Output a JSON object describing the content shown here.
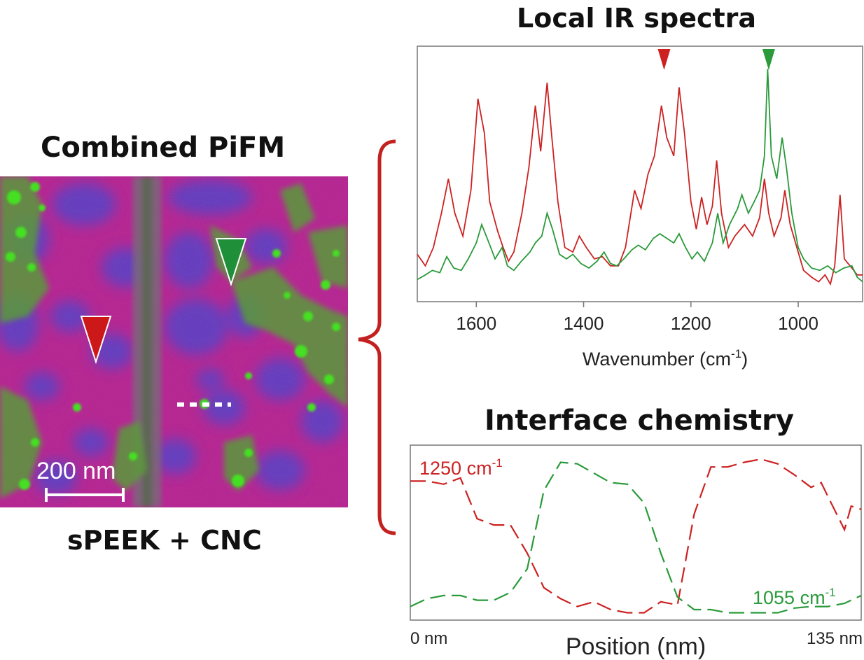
{
  "headings": {
    "combined": "Combined PiFM",
    "sample": "sPEEK + CNC",
    "spectra_title": "Local IR spectra",
    "profile_title": "Interface chemistry"
  },
  "image": {
    "scale_bar_label": "200 nm",
    "scale_bar_value_nm": 200
  },
  "colors": {
    "red": "#cc2222",
    "green": "#2a9a3a",
    "magenta": "#c0208a",
    "blue": "#4a3fc8",
    "particle_green": "#44e020"
  },
  "chart_data": [
    {
      "type": "line",
      "title": "Local IR spectra",
      "xlabel_main": "Wavenumber (cm",
      "xlabel_sup": "-1",
      "xlabel_end": ")",
      "xlim": [
        1710,
        880
      ],
      "reversed_x": true,
      "x_ticks": [
        1600,
        1400,
        1200,
        1000
      ],
      "y_ticks_shown": false,
      "ylim": [
        0,
        1
      ],
      "markers": [
        {
          "x": 1250,
          "color": "#cc2222"
        },
        {
          "x": 1055,
          "color": "#2a9a3a"
        }
      ],
      "series": [
        {
          "color": "#cc2222",
          "points": [
            [
              1710,
              0.17
            ],
            [
              1695,
              0.12
            ],
            [
              1680,
              0.2
            ],
            [
              1665,
              0.35
            ],
            [
              1652,
              0.5
            ],
            [
              1640,
              0.35
            ],
            [
              1625,
              0.25
            ],
            [
              1610,
              0.45
            ],
            [
              1597,
              0.85
            ],
            [
              1585,
              0.7
            ],
            [
              1575,
              0.4
            ],
            [
              1560,
              0.27
            ],
            [
              1550,
              0.2
            ],
            [
              1540,
              0.14
            ],
            [
              1530,
              0.18
            ],
            [
              1515,
              0.35
            ],
            [
              1502,
              0.55
            ],
            [
              1490,
              0.82
            ],
            [
              1480,
              0.62
            ],
            [
              1468,
              0.92
            ],
            [
              1460,
              0.7
            ],
            [
              1448,
              0.4
            ],
            [
              1435,
              0.2
            ],
            [
              1420,
              0.18
            ],
            [
              1408,
              0.25
            ],
            [
              1395,
              0.2
            ],
            [
              1380,
              0.15
            ],
            [
              1365,
              0.16
            ],
            [
              1350,
              0.12
            ],
            [
              1335,
              0.12
            ],
            [
              1322,
              0.2
            ],
            [
              1305,
              0.45
            ],
            [
              1293,
              0.37
            ],
            [
              1280,
              0.52
            ],
            [
              1268,
              0.6
            ],
            [
              1255,
              0.82
            ],
            [
              1245,
              0.68
            ],
            [
              1232,
              0.6
            ],
            [
              1222,
              0.9
            ],
            [
              1212,
              0.7
            ],
            [
              1200,
              0.4
            ],
            [
              1190,
              0.28
            ],
            [
              1180,
              0.42
            ],
            [
              1170,
              0.3
            ],
            [
              1160,
              0.38
            ],
            [
              1152,
              0.58
            ],
            [
              1143,
              0.35
            ],
            [
              1130,
              0.2
            ],
            [
              1118,
              0.25
            ],
            [
              1100,
              0.3
            ],
            [
              1085,
              0.25
            ],
            [
              1072,
              0.33
            ],
            [
              1063,
              0.5
            ],
            [
              1055,
              0.35
            ],
            [
              1045,
              0.25
            ],
            [
              1032,
              0.33
            ],
            [
              1025,
              0.45
            ],
            [
              1015,
              0.3
            ],
            [
              1000,
              0.18
            ],
            [
              990,
              0.1
            ],
            [
              975,
              0.07
            ],
            [
              962,
              0.05
            ],
            [
              950,
              0.08
            ],
            [
              940,
              0.04
            ],
            [
              932,
              0.12
            ],
            [
              922,
              0.43
            ],
            [
              914,
              0.15
            ],
            [
              900,
              0.11
            ],
            [
              890,
              0.08
            ],
            [
              880,
              0.08
            ]
          ]
        },
        {
          "color": "#2a9a3a",
          "points": [
            [
              1710,
              0.06
            ],
            [
              1695,
              0.08
            ],
            [
              1682,
              0.1
            ],
            [
              1668,
              0.09
            ],
            [
              1655,
              0.16
            ],
            [
              1642,
              0.11
            ],
            [
              1628,
              0.1
            ],
            [
              1615,
              0.15
            ],
            [
              1600,
              0.22
            ],
            [
              1590,
              0.3
            ],
            [
              1578,
              0.23
            ],
            [
              1565,
              0.15
            ],
            [
              1552,
              0.2
            ],
            [
              1542,
              0.12
            ],
            [
              1530,
              0.1
            ],
            [
              1516,
              0.14
            ],
            [
              1500,
              0.18
            ],
            [
              1490,
              0.22
            ],
            [
              1478,
              0.25
            ],
            [
              1468,
              0.35
            ],
            [
              1458,
              0.28
            ],
            [
              1445,
              0.17
            ],
            [
              1432,
              0.15
            ],
            [
              1420,
              0.17
            ],
            [
              1405,
              0.13
            ],
            [
              1390,
              0.11
            ],
            [
              1375,
              0.14
            ],
            [
              1362,
              0.18
            ],
            [
              1350,
              0.13
            ],
            [
              1338,
              0.12
            ],
            [
              1325,
              0.15
            ],
            [
              1310,
              0.19
            ],
            [
              1298,
              0.21
            ],
            [
              1285,
              0.19
            ],
            [
              1270,
              0.24
            ],
            [
              1258,
              0.26
            ],
            [
              1245,
              0.24
            ],
            [
              1232,
              0.22
            ],
            [
              1222,
              0.26
            ],
            [
              1210,
              0.2
            ],
            [
              1198,
              0.15
            ],
            [
              1188,
              0.18
            ],
            [
              1175,
              0.14
            ],
            [
              1160,
              0.22
            ],
            [
              1150,
              0.35
            ],
            [
              1140,
              0.22
            ],
            [
              1128,
              0.3
            ],
            [
              1113,
              0.37
            ],
            [
              1105,
              0.43
            ],
            [
              1093,
              0.35
            ],
            [
              1082,
              0.4
            ],
            [
              1072,
              0.45
            ],
            [
              1063,
              0.6
            ],
            [
              1057,
              0.98
            ],
            [
              1050,
              0.6
            ],
            [
              1040,
              0.5
            ],
            [
              1030,
              0.68
            ],
            [
              1022,
              0.55
            ],
            [
              1012,
              0.35
            ],
            [
              1000,
              0.2
            ],
            [
              990,
              0.15
            ],
            [
              975,
              0.11
            ],
            [
              960,
              0.1
            ],
            [
              945,
              0.12
            ],
            [
              930,
              0.09
            ],
            [
              915,
              0.11
            ],
            [
              900,
              0.12
            ],
            [
              890,
              0.07
            ],
            [
              880,
              0.05
            ]
          ]
        }
      ]
    },
    {
      "type": "line",
      "title": "Interface chemistry",
      "xlabel": "Position (nm)",
      "x_tick_labels": [
        "0 nm",
        "135 nm"
      ],
      "xlim": [
        0,
        135
      ],
      "ylim": [
        0,
        1
      ],
      "series": [
        {
          "name_main": "1250 cm",
          "name_sup": "-1",
          "color": "#cc2222",
          "dash": true,
          "points": [
            [
              0,
              0.86
            ],
            [
              5,
              0.86
            ],
            [
              10,
              0.84
            ],
            [
              15,
              0.88
            ],
            [
              20,
              0.62
            ],
            [
              25,
              0.58
            ],
            [
              30,
              0.58
            ],
            [
              35,
              0.4
            ],
            [
              40,
              0.18
            ],
            [
              45,
              0.11
            ],
            [
              50,
              0.06
            ],
            [
              55,
              0.09
            ],
            [
              60,
              0.04
            ],
            [
              65,
              0.02
            ],
            [
              70,
              0.02
            ],
            [
              75,
              0.09
            ],
            [
              80,
              0.07
            ],
            [
              85,
              0.65
            ],
            [
              90,
              0.95
            ],
            [
              95,
              0.95
            ],
            [
              100,
              0.98
            ],
            [
              105,
              1.0
            ],
            [
              110,
              0.97
            ],
            [
              115,
              0.9
            ],
            [
              120,
              0.82
            ],
            [
              123,
              0.85
            ],
            [
              126,
              0.72
            ],
            [
              130,
              0.55
            ],
            [
              132,
              0.7
            ],
            [
              135,
              0.68
            ]
          ]
        },
        {
          "name_main": "1055 cm",
          "name_sup": "-1",
          "color": "#2a9a3a",
          "dash": true,
          "points": [
            [
              0,
              0.06
            ],
            [
              5,
              0.11
            ],
            [
              10,
              0.13
            ],
            [
              15,
              0.13
            ],
            [
              20,
              0.1
            ],
            [
              25,
              0.1
            ],
            [
              30,
              0.15
            ],
            [
              35,
              0.3
            ],
            [
              40,
              0.8
            ],
            [
              45,
              0.98
            ],
            [
              50,
              0.97
            ],
            [
              55,
              0.91
            ],
            [
              60,
              0.85
            ],
            [
              65,
              0.84
            ],
            [
              70,
              0.72
            ],
            [
              75,
              0.4
            ],
            [
              80,
              0.12
            ],
            [
              85,
              0.04
            ],
            [
              90,
              0.04
            ],
            [
              95,
              0.02
            ],
            [
              100,
              0.02
            ],
            [
              105,
              0.02
            ],
            [
              110,
              0.02
            ],
            [
              115,
              0.05
            ],
            [
              120,
              0.06
            ],
            [
              125,
              0.06
            ],
            [
              130,
              0.08
            ],
            [
              135,
              0.13
            ]
          ]
        }
      ]
    }
  ]
}
